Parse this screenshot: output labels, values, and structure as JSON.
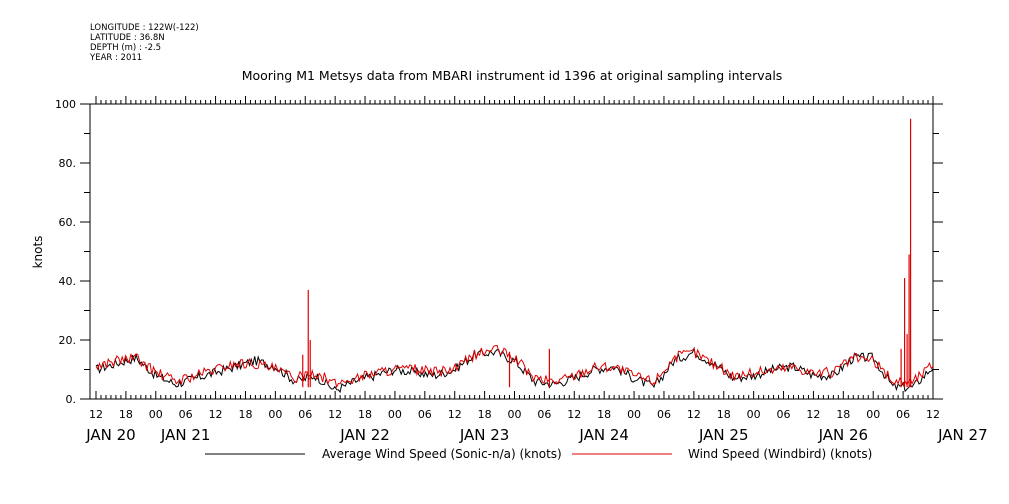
{
  "header": {
    "longitude": "LONGITUDE : 122W(-122)",
    "latitude": "LATITUDE : 36.8N",
    "depth": "DEPTH (m) : -2.5",
    "year": "YEAR : 2011"
  },
  "chart_data": {
    "type": "line",
    "title": "Mooring M1 Metsys data from MBARI instrument id 1396 at original sampling intervals",
    "ylabel": "knots",
    "xlabel": "",
    "ylim": [
      0,
      100
    ],
    "xlim_hours": [
      0,
      168
    ],
    "y_ticks": [
      "0.",
      "20.",
      "40.",
      "60.",
      "80.",
      "100"
    ],
    "y_tick_values": [
      0,
      20,
      40,
      60,
      80,
      100
    ],
    "x_hour_ticks": [
      "12",
      "18",
      "00",
      "06",
      "12",
      "18",
      "00",
      "06",
      "12",
      "18",
      "00",
      "06",
      "12",
      "18",
      "00",
      "06",
      "12",
      "18",
      "00",
      "06",
      "12",
      "18",
      "00",
      "06",
      "12",
      "18",
      "00",
      "06",
      "12"
    ],
    "day_labels": [
      "JAN 20",
      "JAN 21",
      "JAN 22",
      "JAN 23",
      "JAN 24",
      "JAN 25",
      "JAN 26",
      "JAN 27"
    ],
    "grid": false,
    "legend_position": "bottom",
    "series": [
      {
        "name": "Average Wind Speed (Sonic-n/a) (knots)",
        "color": "#000000",
        "x_hours": [
          0,
          4,
          8,
          12,
          16,
          20,
          24,
          28,
          32,
          36,
          40,
          44,
          48,
          52,
          56,
          60,
          64,
          68,
          72,
          76,
          80,
          84,
          88,
          92,
          96,
          100,
          104,
          108,
          112,
          116,
          120,
          124,
          128,
          132,
          136,
          140,
          144,
          148,
          152,
          156,
          160,
          164,
          168
        ],
        "values": [
          10,
          12,
          14,
          8,
          5,
          7,
          9,
          11,
          13,
          11,
          6,
          8,
          3,
          6,
          8,
          10,
          9,
          8,
          10,
          15,
          16,
          13,
          6,
          5,
          7,
          10,
          11,
          7,
          4,
          13,
          16,
          12,
          7,
          8,
          10,
          11,
          8,
          8,
          14,
          14,
          4,
          4,
          11
        ]
      },
      {
        "name": "Wind Speed (Windbird) (knots)",
        "color": "#e00000",
        "x_hours": [
          0,
          4,
          8,
          12,
          16,
          20,
          24,
          28,
          32,
          36,
          40,
          44,
          48,
          52,
          56,
          60,
          64,
          68,
          72,
          76,
          80,
          84,
          88,
          92,
          96,
          100,
          104,
          108,
          112,
          116,
          120,
          124,
          128,
          132,
          136,
          140,
          144,
          148,
          152,
          156,
          160,
          164,
          168
        ],
        "values": [
          11,
          13,
          14,
          9,
          6,
          8,
          10,
          12,
          12,
          10,
          7,
          9,
          5,
          7,
          9,
          10,
          10,
          9,
          10,
          15,
          17,
          14,
          7,
          6,
          8,
          11,
          11,
          8,
          6,
          14,
          16,
          12,
          8,
          9,
          10,
          11,
          9,
          9,
          14,
          13,
          6,
          6,
          12
        ],
        "spikes": [
          {
            "x_hour": 42.6,
            "value": 37
          },
          {
            "x_hour": 43.0,
            "value": 20
          },
          {
            "x_hour": 41.5,
            "value": 15
          },
          {
            "x_hour": 83.0,
            "value": 16
          },
          {
            "x_hour": 91.0,
            "value": 17
          },
          {
            "x_hour": 162.3,
            "value": 41
          },
          {
            "x_hour": 162.8,
            "value": 22
          },
          {
            "x_hour": 163.5,
            "value": 95
          },
          {
            "x_hour": 163.2,
            "value": 49
          },
          {
            "x_hour": 161.6,
            "value": 17
          }
        ]
      }
    ]
  }
}
